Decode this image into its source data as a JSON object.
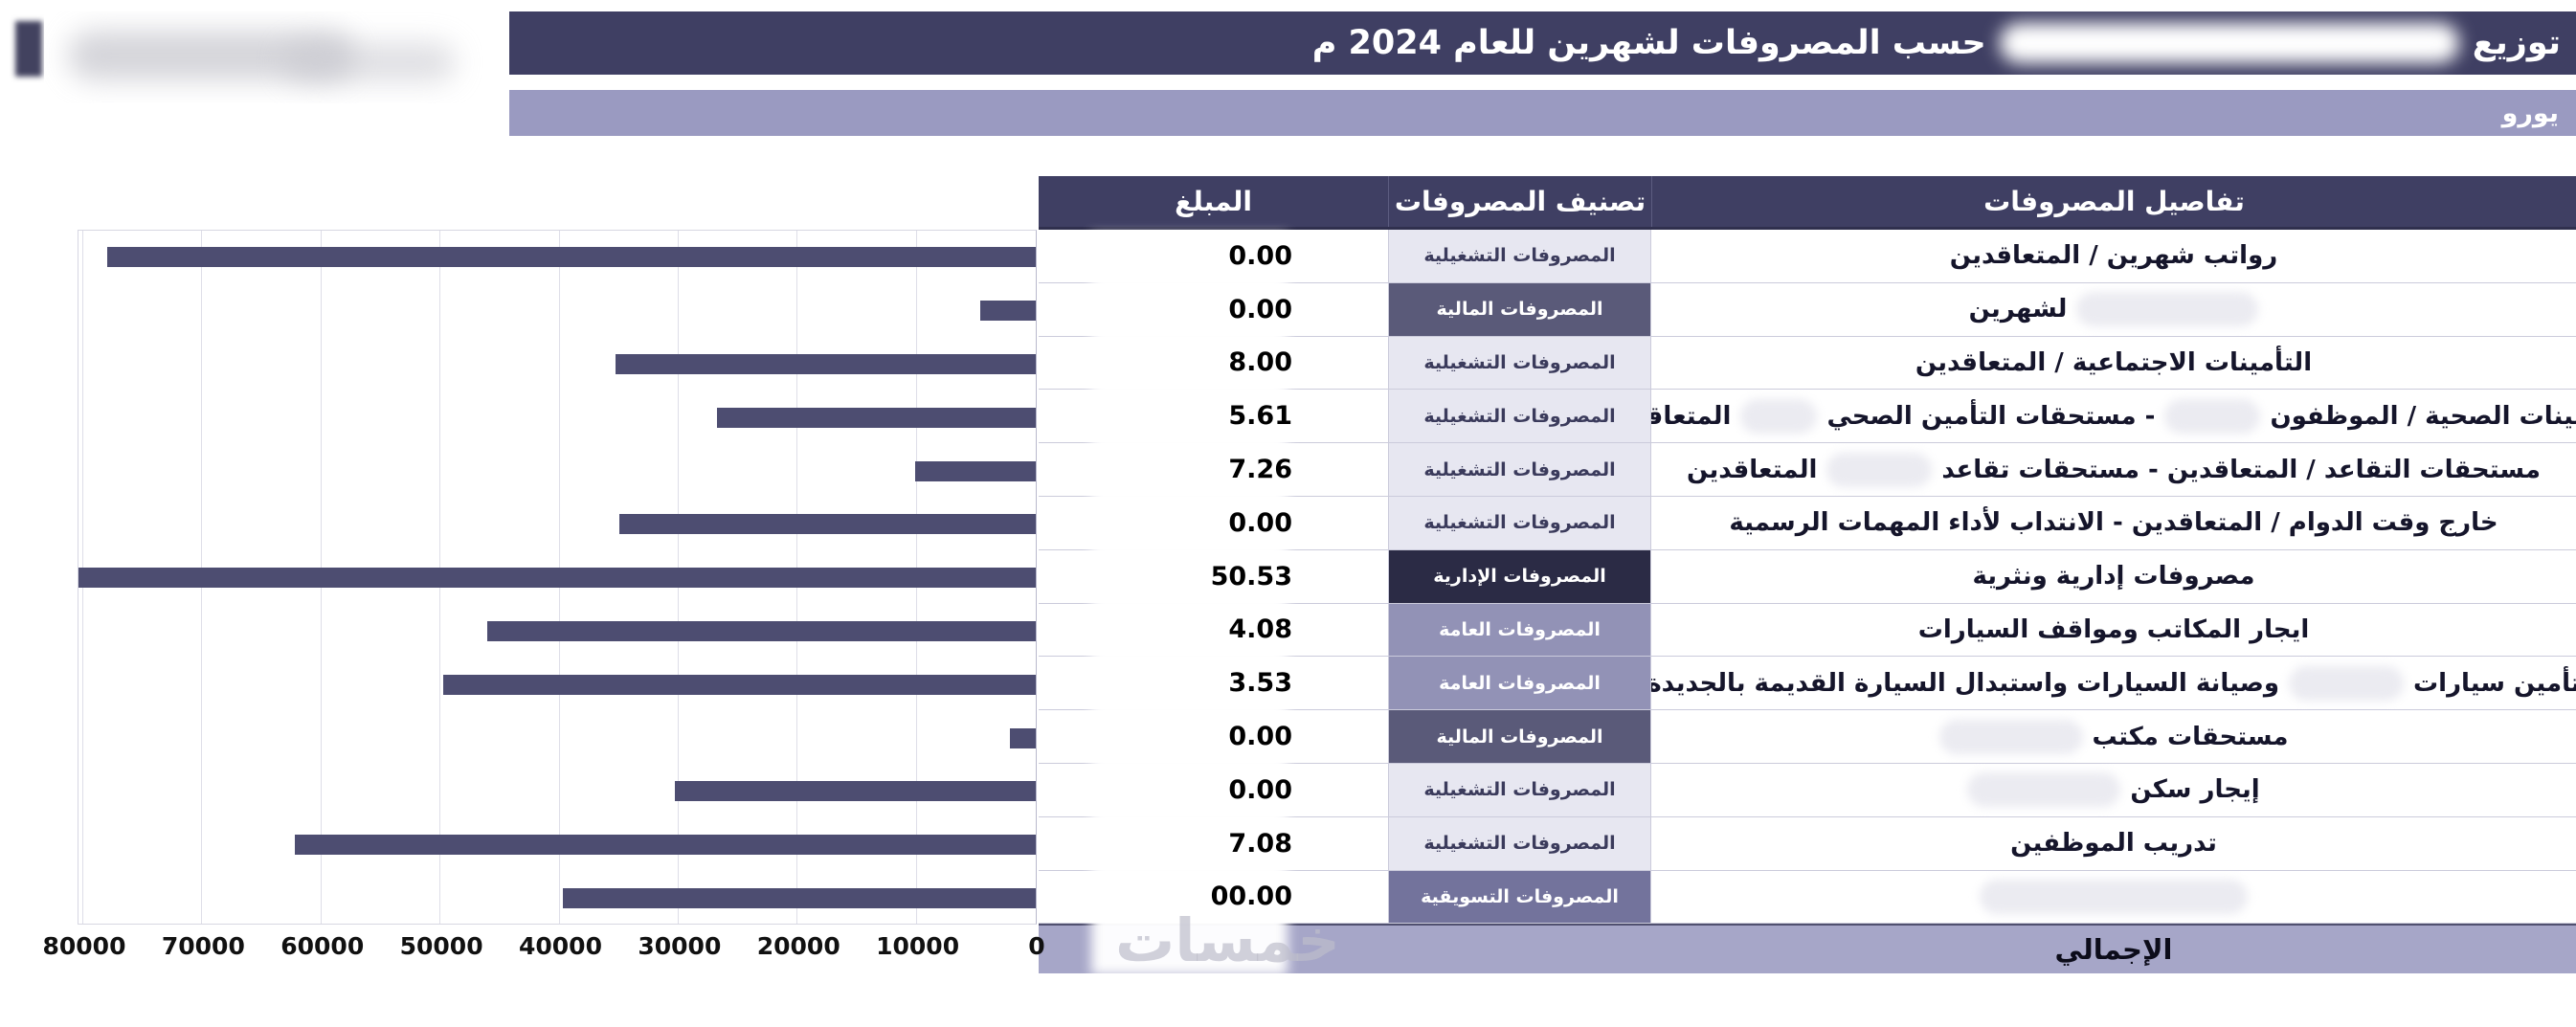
{
  "header": {
    "title_prefix": "توزيع",
    "title_suffix": "حسب المصروفات لشهرين للعام 2024 م",
    "currency_label": "يورو"
  },
  "table": {
    "columns": [
      "تفاصيل المصروفات",
      "تصنيف المصروفات",
      "المبلغ"
    ],
    "total_label": "الإجمالي",
    "rows": [
      {
        "details": [
          "رواتب شهرين / المتعاقدين"
        ],
        "category": "المصروفات التشغيلية",
        "category_key": "operational",
        "amount_visible": "0.00"
      },
      {
        "details": [
          {
            "smudge": 190
          },
          "لشهرين"
        ],
        "category": "المصروفات المالية",
        "category_key": "financial",
        "amount_visible": "0.00"
      },
      {
        "details": [
          "التأمينات الاجتماعية / المتعاقدين"
        ],
        "category": "المصروفات التشغيلية",
        "category_key": "operational",
        "amount_visible": "8.00"
      },
      {
        "details": [
          "التأمينات الصحية / الموظفون",
          {
            "smudge": 100
          },
          "- مستحقات التأمين الصحي",
          {
            "smudge": 80
          },
          "المتعاقدين"
        ],
        "category": "المصروفات التشغيلية",
        "category_key": "operational",
        "amount_visible": "5.61"
      },
      {
        "details": [
          "مستحقات التقاعد / المتعاقدين - مستحقات تقاعد",
          {
            "smudge": 110
          },
          "المتعاقدين"
        ],
        "category": "المصروفات التشغيلية",
        "category_key": "operational",
        "amount_visible": "7.26"
      },
      {
        "details": [
          "خارج وقت الدوام / المتعاقدين - الانتداب لأداء المهمات الرسمية"
        ],
        "category": "المصروفات التشغيلية",
        "category_key": "operational",
        "amount_visible": "0.00"
      },
      {
        "details": [
          "مصروفات إدارية ونثرية"
        ],
        "category": "المصروفات الإدارية",
        "category_key": "administrative",
        "amount_visible": "50.53"
      },
      {
        "details": [
          "ايجار المكاتب ومواقف السيارات"
        ],
        "category": "المصروفات العامة",
        "category_key": "general",
        "amount_visible": "4.08"
      },
      {
        "details": [
          "تأمين سيارات",
          {
            "smudge": 120
          },
          "وصيانة السيارات واستبدال السيارة القديمة بالجديدة"
        ],
        "category": "المصروفات العامة",
        "category_key": "general",
        "amount_visible": "3.53"
      },
      {
        "details": [
          "مستحقات مكتب",
          {
            "smudge": 150
          }
        ],
        "category": "المصروفات المالية",
        "category_key": "financial",
        "amount_visible": "0.00"
      },
      {
        "details": [
          "إيجار سكن",
          {
            "smudge": 160
          }
        ],
        "category": "المصروفات التشغيلية",
        "category_key": "operational",
        "amount_visible": "0.00"
      },
      {
        "details": [
          "تدريب الموظفين"
        ],
        "category": "المصروفات التشغيلية",
        "category_key": "operational",
        "amount_visible": "7.08"
      },
      {
        "details": [
          {
            "smudge": 280
          }
        ],
        "category": "المصروفات التسويقية",
        "category_key": "marketing",
        "amount_visible": "00.00"
      }
    ]
  },
  "chart_data": {
    "type": "bar",
    "orientation": "horizontal",
    "title": "",
    "categories": [
      "رواتب شهرين / المتعاقدين",
      "… لشهرين",
      "التأمينات الاجتماعية / المتعاقدين",
      "التأمينات الصحية / الموظفون … - مستحقات التأمين الصحي … المتعاقدين",
      "مستحقات التقاعد / المتعاقدين - مستحقات تقاعد …",
      "خارج وقت الدوام / المتعاقدين - الانتداب لأداء المهمات الرسمية",
      "مصروفات إدارية ونثرية",
      "ايجار المكاتب ومواقف السيارات",
      "تأمين سيارات … وصيانة السيارات واستبدال السيارة القديمة بالجديدة",
      "مستحقات مكتب …",
      "إيجار سكن …",
      "تدريب الموظفين",
      "…"
    ],
    "values": [
      78000,
      4700,
      35300,
      26800,
      10100,
      35000,
      80500,
      46100,
      49800,
      2200,
      30300,
      62200,
      39700
    ],
    "x_axis": {
      "min": 0,
      "max": 80000,
      "step": 10000,
      "direction": "right-to-left"
    },
    "ticks": [
      0,
      10000,
      20000,
      30000,
      40000,
      50000,
      60000,
      70000,
      80000
    ],
    "grid": true,
    "legend": false
  },
  "watermark": "خمسات",
  "colors": {
    "navy": "#3f3f63",
    "subtitle_bar": "#9a9ac1",
    "total_band": "#a6a6c8",
    "bar": "#4d4d71",
    "categories": {
      "operational": {
        "bg": "#e7e7f1",
        "text": "#3b3b5c"
      },
      "financial": {
        "bg": "#5a5a79",
        "text": "#ffffff"
      },
      "administrative": {
        "bg": "#2b2b45",
        "text": "#ffffff"
      },
      "general": {
        "bg": "#9292b6",
        "text": "#ffffff"
      },
      "marketing": {
        "bg": "#73739c",
        "text": "#ffffff"
      }
    }
  }
}
